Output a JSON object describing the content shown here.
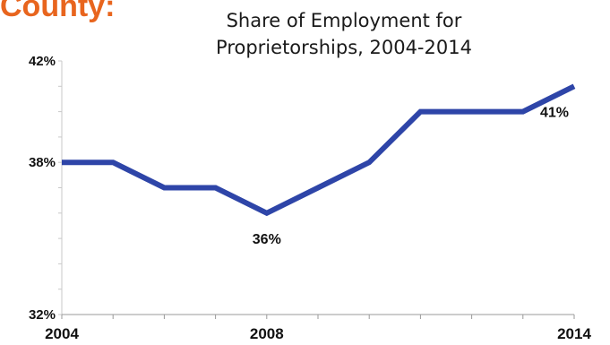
{
  "page": {
    "header_fragment": "County:",
    "header_color": "#e8651e"
  },
  "chart_data": {
    "type": "line",
    "title_lines": [
      "Share of Employment for",
      "Proprietorships, 2004-2014"
    ],
    "x": [
      2004,
      2005,
      2006,
      2007,
      2008,
      2009,
      2010,
      2011,
      2012,
      2013,
      2014
    ],
    "series": [
      {
        "color": "#2e45a8",
        "values": [
          38,
          38,
          37,
          37,
          36,
          37,
          38,
          40,
          40,
          40,
          41
        ]
      }
    ],
    "xlim": [
      2004,
      2014
    ],
    "ylim": [
      32,
      42
    ],
    "x_tick_labels": [
      {
        "value": 2004,
        "label": "2004"
      },
      {
        "value": 2008,
        "label": "2008"
      },
      {
        "value": 2014,
        "label": "2014"
      }
    ],
    "y_tick_labels": [
      {
        "value": 42,
        "label": "42%"
      },
      {
        "value": 38,
        "label": "38%"
      },
      {
        "value": 32,
        "label": "32%"
      }
    ],
    "data_labels": [
      {
        "x": 2008,
        "y": 36,
        "label": "36%"
      },
      {
        "x": 2014,
        "y": 41,
        "label": "41%"
      }
    ],
    "grid": false
  }
}
